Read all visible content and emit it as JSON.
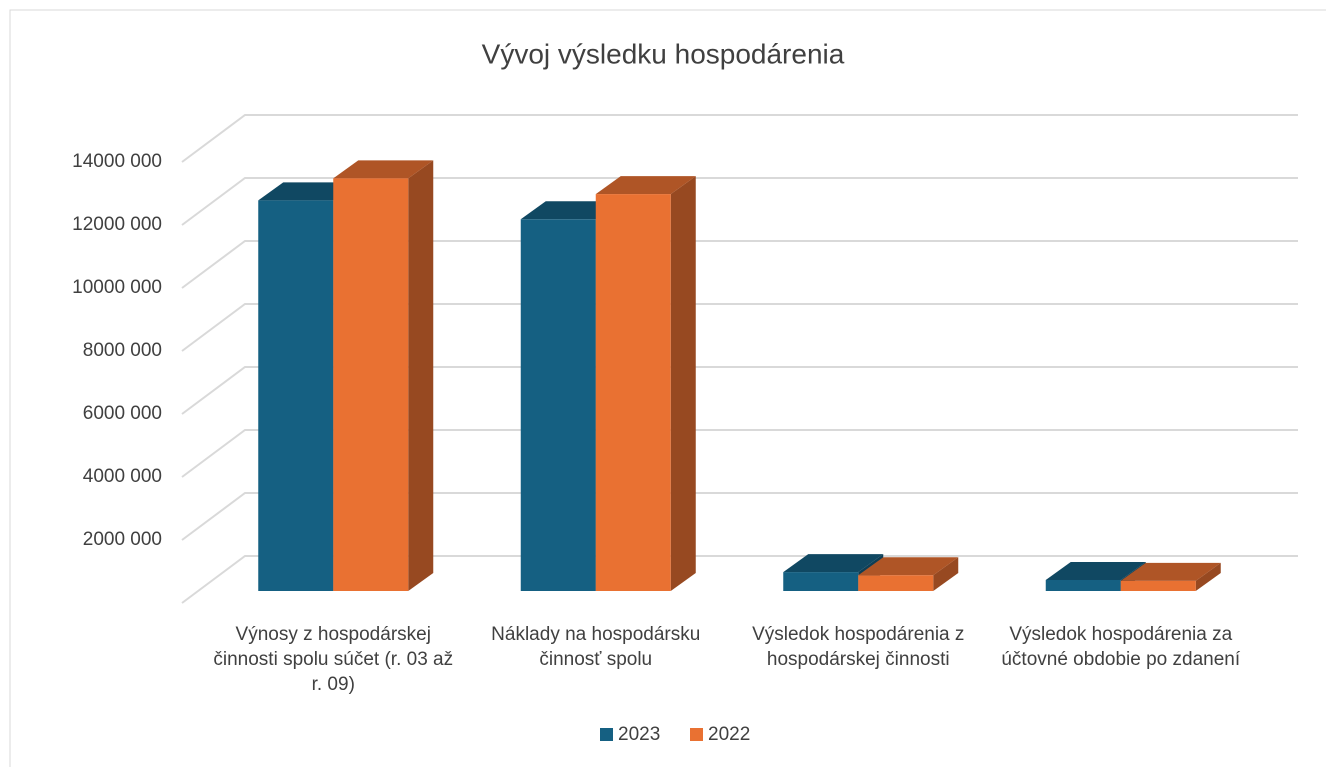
{
  "chart_data": {
    "type": "bar3d",
    "title": "Vývoj výsledku hospodárenia",
    "categories": [
      "Výnosy z hospodárskej činnosti spolu súčet (r. 03 až r. 09)",
      "Náklady na hospodársku činnosť spolu",
      "Výsledok hospodárenia z hospodárskej činnosti",
      "Výsledok hospodárenia za účtovné obdobie po zdanení"
    ],
    "series": [
      {
        "name": "2023",
        "color": "#156082",
        "values": [
          12400000,
          11800000,
          600000,
          350000
        ]
      },
      {
        "name": "2022",
        "color": "#e97132",
        "values": [
          13100000,
          12600000,
          500000,
          320000
        ]
      }
    ],
    "ylim": [
      0,
      14000000
    ],
    "yticks": [
      {
        "value": 2000000,
        "label": "2000 000"
      },
      {
        "value": 4000000,
        "label": "4000 000"
      },
      {
        "value": 6000000,
        "label": "6000 000"
      },
      {
        "value": 8000000,
        "label": "8000 000"
      },
      {
        "value": 10000000,
        "label": "10000 000"
      },
      {
        "value": 12000000,
        "label": "12000 000"
      },
      {
        "value": 14000000,
        "label": "14000 000"
      }
    ],
    "grid": true,
    "legend": "bottom"
  }
}
